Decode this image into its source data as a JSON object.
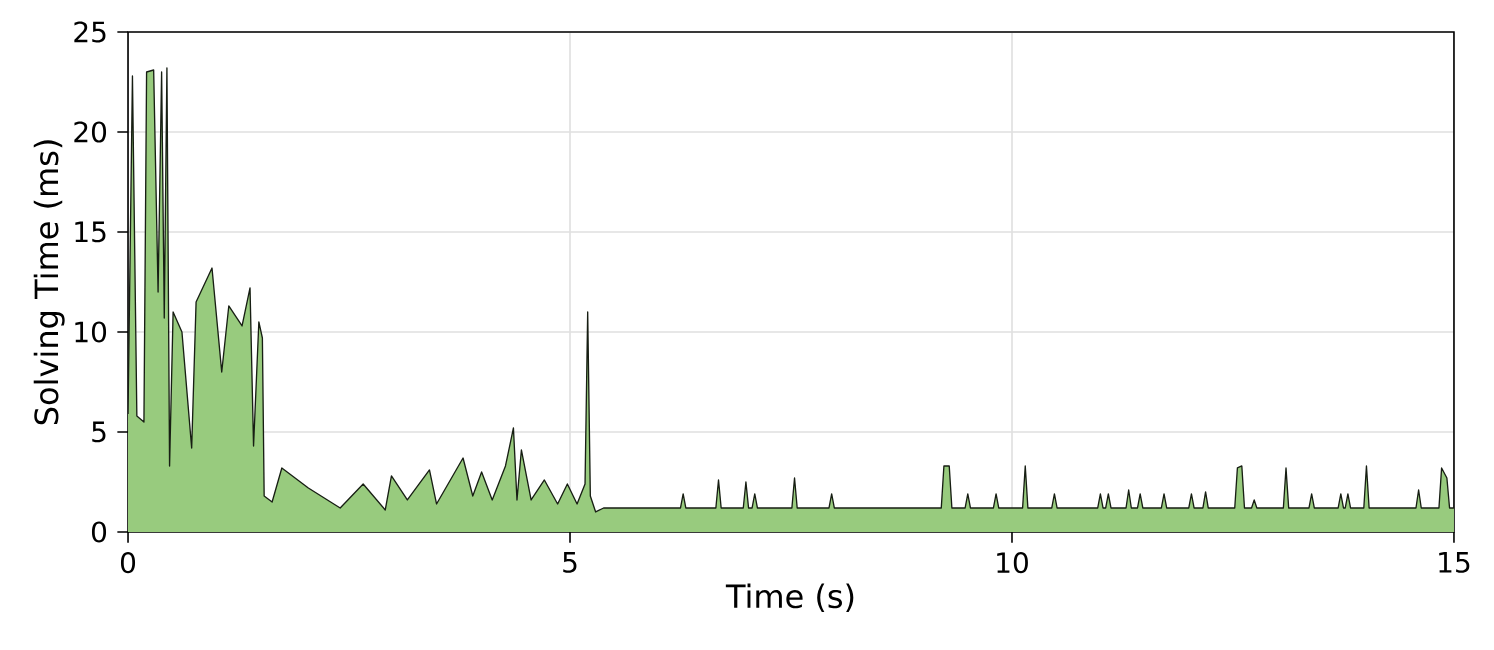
{
  "chart_data": {
    "type": "area",
    "xlabel": "Time (s)",
    "ylabel": "Solving Time (ms)",
    "xlim": [
      0,
      15
    ],
    "xticks": [
      0,
      5,
      10,
      15
    ],
    "ylim": [
      0,
      25
    ],
    "yticks": [
      0,
      5,
      10,
      15,
      20,
      25
    ],
    "grid": true,
    "series": [
      {
        "color": "#98cb7e",
        "x": [
          0,
          0.05,
          0.1,
          0.18,
          0.21,
          0.29,
          0.34,
          0.38,
          0.41,
          0.44,
          0.47,
          0.51,
          0.61,
          0.72,
          0.77,
          0.95,
          1.06,
          1.14,
          1.29,
          1.38,
          1.42,
          1.48,
          1.52,
          1.54,
          1.63,
          1.74,
          2.04,
          2.4,
          2.66,
          2.91,
          2.98,
          3.16,
          3.41,
          3.49,
          3.79,
          3.9,
          4.0,
          4.12,
          4.27,
          4.36,
          4.4,
          4.45,
          4.56,
          4.71,
          4.86,
          4.97,
          5.08,
          5.17,
          5.2,
          5.23,
          5.29,
          5.38,
          6.25,
          6.28,
          6.31,
          6.65,
          6.68,
          6.71,
          6.96,
          6.99,
          7.02,
          7.06,
          7.09,
          7.12,
          7.51,
          7.54,
          7.57,
          7.93,
          7.96,
          7.99,
          9.2,
          9.23,
          9.29,
          9.32,
          9.47,
          9.5,
          9.53,
          9.79,
          9.82,
          9.85,
          10.12,
          10.15,
          10.18,
          10.45,
          10.48,
          10.51,
          10.97,
          11.0,
          11.03,
          11.06,
          11.09,
          11.12,
          11.29,
          11.32,
          11.35,
          11.42,
          11.45,
          11.48,
          11.69,
          11.72,
          11.75,
          12.0,
          12.03,
          12.06,
          12.16,
          12.19,
          12.22,
          12.52,
          12.55,
          12.6,
          12.63,
          12.71,
          12.74,
          12.77,
          13.07,
          13.1,
          13.13,
          13.36,
          13.39,
          13.42,
          13.69,
          13.72,
          13.75,
          13.77,
          13.8,
          13.83,
          13.98,
          14.01,
          14.04,
          14.57,
          14.6,
          14.63,
          14.83,
          14.86,
          14.92,
          14.95,
          15
        ],
        "values": [
          5.9,
          22.8,
          5.8,
          5.5,
          23,
          23.1,
          12,
          23,
          10.7,
          23.2,
          3.3,
          11,
          10,
          4.2,
          11.5,
          13.2,
          8,
          11.3,
          10.3,
          12.2,
          4.3,
          10.5,
          9.7,
          1.8,
          1.5,
          3.2,
          2.2,
          1.2,
          2.4,
          1.1,
          2.8,
          1.6,
          3.1,
          1.4,
          3.7,
          1.8,
          3.0,
          1.6,
          3.3,
          5.2,
          1.6,
          4.1,
          1.6,
          2.6,
          1.4,
          2.4,
          1.4,
          2.4,
          11,
          1.8,
          1.0,
          1.2,
          1.2,
          1.9,
          1.2,
          1.2,
          2.6,
          1.2,
          1.2,
          2.5,
          1.2,
          1.2,
          1.9,
          1.2,
          1.2,
          2.7,
          1.2,
          1.2,
          1.9,
          1.2,
          1.2,
          3.3,
          3.3,
          1.2,
          1.2,
          1.9,
          1.2,
          1.2,
          1.9,
          1.2,
          1.2,
          3.3,
          1.2,
          1.2,
          1.9,
          1.2,
          1.2,
          1.9,
          1.2,
          1.2,
          1.9,
          1.2,
          1.2,
          2.1,
          1.2,
          1.2,
          1.9,
          1.2,
          1.2,
          1.9,
          1.2,
          1.2,
          1.9,
          1.2,
          1.2,
          2.0,
          1.2,
          1.2,
          3.2,
          3.3,
          1.2,
          1.2,
          1.6,
          1.2,
          1.2,
          3.2,
          1.2,
          1.2,
          1.9,
          1.2,
          1.2,
          1.9,
          1.2,
          1.2,
          1.9,
          1.2,
          1.2,
          3.3,
          1.2,
          1.2,
          2.1,
          1.2,
          1.2,
          3.2,
          2.7,
          1.2,
          1.2
        ]
      }
    ]
  }
}
